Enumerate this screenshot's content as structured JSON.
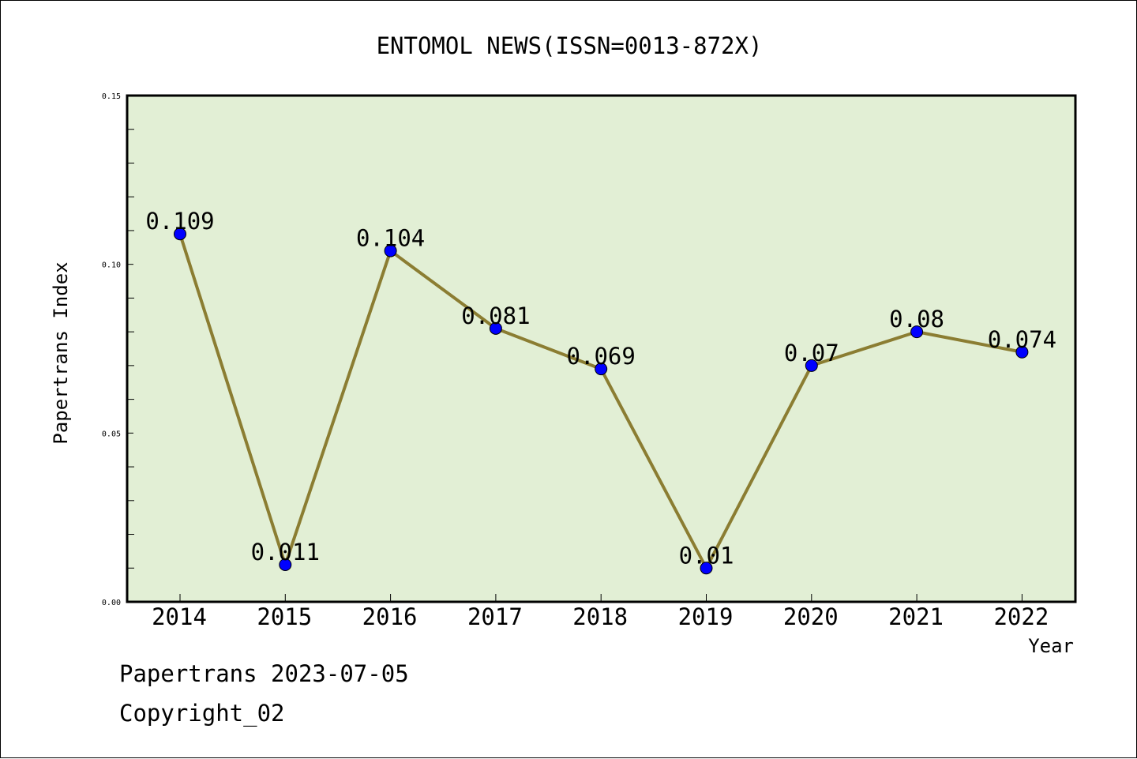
{
  "chart_data": {
    "type": "line",
    "title": "ENTOMOL NEWS(ISSN=0013-872X)",
    "xlabel": "Year",
    "ylabel": "Papertrans Index",
    "categories": [
      "2014",
      "2015",
      "2016",
      "2017",
      "2018",
      "2019",
      "2020",
      "2021",
      "2022"
    ],
    "values": [
      0.109,
      0.011,
      0.104,
      0.081,
      0.069,
      0.01,
      0.07,
      0.08,
      0.074
    ],
    "data_labels": [
      "0.109",
      "0.011",
      "0.104",
      "0.081",
      "0.069",
      "0.01",
      "0.07",
      "0.08",
      "0.074"
    ],
    "ylim": [
      0,
      0.15
    ],
    "yticks": [
      "0.00",
      "0.05",
      "0.10",
      "0.15"
    ],
    "grid": false,
    "line_color": "#8b7d32",
    "marker_color": "#0000ff",
    "plot_background": "#e2efd5"
  },
  "footer": {
    "line1": "Papertrans 2023-07-05",
    "line2": "Copyright_02"
  }
}
